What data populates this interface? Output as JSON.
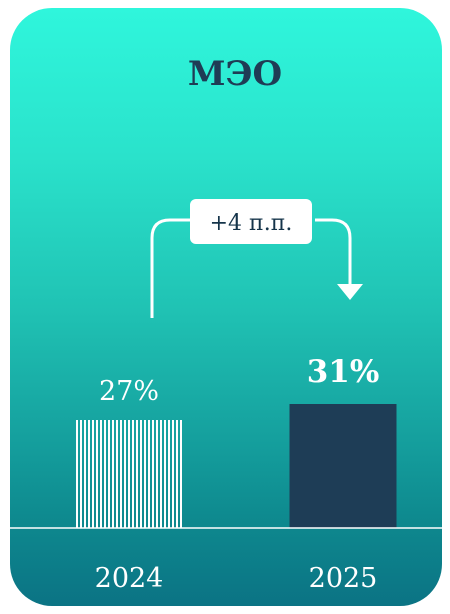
{
  "chart_data": {
    "type": "bar",
    "title": "МЭО",
    "categories": [
      "2024",
      "2025"
    ],
    "values": [
      27,
      31
    ],
    "value_labels": [
      "27%",
      "31%"
    ],
    "delta_label": "+4 п.п.",
    "ylim": [
      0,
      100
    ],
    "colors": {
      "bar_2024": "#ffffff",
      "bar_2025": "#1e3d56",
      "title": "#1f3c55",
      "axis": "#ffffff"
    }
  }
}
